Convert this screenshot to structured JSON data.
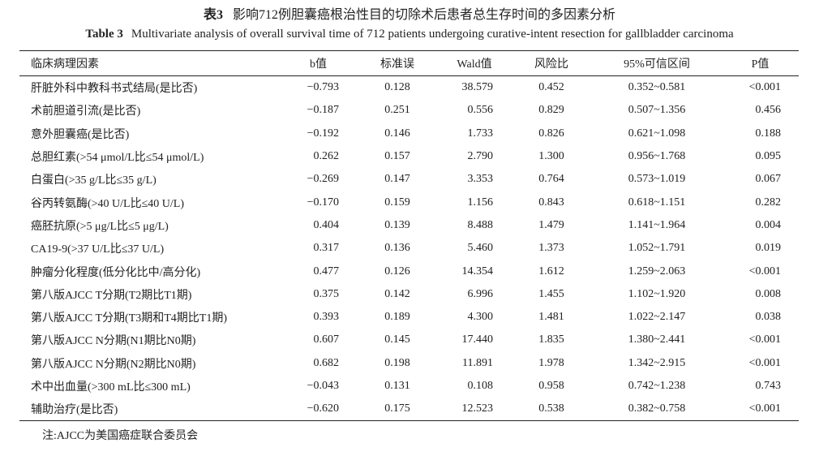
{
  "title": {
    "label": "表3",
    "text": "影响712例胆囊癌根治性目的切除术后患者总生存时间的多因素分析"
  },
  "title_en": {
    "label": "Table 3",
    "text": "Multivariate analysis of overall survival time of 712 patients undergoing curative-intent resection for gallbladder carcinoma"
  },
  "table": {
    "header": [
      "临床病理因素",
      "b值",
      "标准误",
      "Wald值",
      "风险比",
      "95%可信区间",
      "P值"
    ],
    "rows": [
      [
        "肝脏外科中教科书式结局(是比否)",
        "−0.793",
        "0.128",
        "38.579",
        "0.452",
        "0.352~0.581",
        "<0.001"
      ],
      [
        "术前胆道引流(是比否)",
        "−0.187",
        "0.251",
        "0.556",
        "0.829",
        "0.507~1.356",
        "0.456"
      ],
      [
        "意外胆囊癌(是比否)",
        "−0.192",
        "0.146",
        "1.733",
        "0.826",
        "0.621~1.098",
        "0.188"
      ],
      [
        "总胆红素(>54 μmol/L比≤54 μmol/L)",
        "0.262",
        "0.157",
        "2.790",
        "1.300",
        "0.956~1.768",
        "0.095"
      ],
      [
        "白蛋白(>35 g/L比≤35 g/L)",
        "−0.269",
        "0.147",
        "3.353",
        "0.764",
        "0.573~1.019",
        "0.067"
      ],
      [
        "谷丙转氨酶(>40 U/L比≤40 U/L)",
        "−0.170",
        "0.159",
        "1.156",
        "0.843",
        "0.618~1.151",
        "0.282"
      ],
      [
        "癌胚抗原(>5 μg/L比≤5 μg/L)",
        "0.404",
        "0.139",
        "8.488",
        "1.479",
        "1.141~1.964",
        "0.004"
      ],
      [
        "CA19-9(>37 U/L比≤37 U/L)",
        "0.317",
        "0.136",
        "5.460",
        "1.373",
        "1.052~1.791",
        "0.019"
      ],
      [
        "肿瘤分化程度(低分化比中/高分化)",
        "0.477",
        "0.126",
        "14.354",
        "1.612",
        "1.259~2.063",
        "<0.001"
      ],
      [
        "第八版AJCC T分期(T2期比T1期)",
        "0.375",
        "0.142",
        "6.996",
        "1.455",
        "1.102~1.920",
        "0.008"
      ],
      [
        "第八版AJCC T分期(T3期和T4期比T1期)",
        "0.393",
        "0.189",
        "4.300",
        "1.481",
        "1.022~2.147",
        "0.038"
      ],
      [
        "第八版AJCC N分期(N1期比N0期)",
        "0.607",
        "0.145",
        "17.440",
        "1.835",
        "1.380~2.441",
        "<0.001"
      ],
      [
        "第八版AJCC N分期(N2期比N0期)",
        "0.682",
        "0.198",
        "11.891",
        "1.978",
        "1.342~2.915",
        "<0.001"
      ],
      [
        "术中出血量(>300 mL比≤300 mL)",
        "−0.043",
        "0.131",
        "0.108",
        "0.958",
        "0.742~1.238",
        "0.743"
      ],
      [
        "辅助治疗(是比否)",
        "−0.620",
        "0.175",
        "12.523",
        "0.538",
        "0.382~0.758",
        "<0.001"
      ]
    ]
  },
  "note": "注:AJCC为美国癌症联合委员会"
}
